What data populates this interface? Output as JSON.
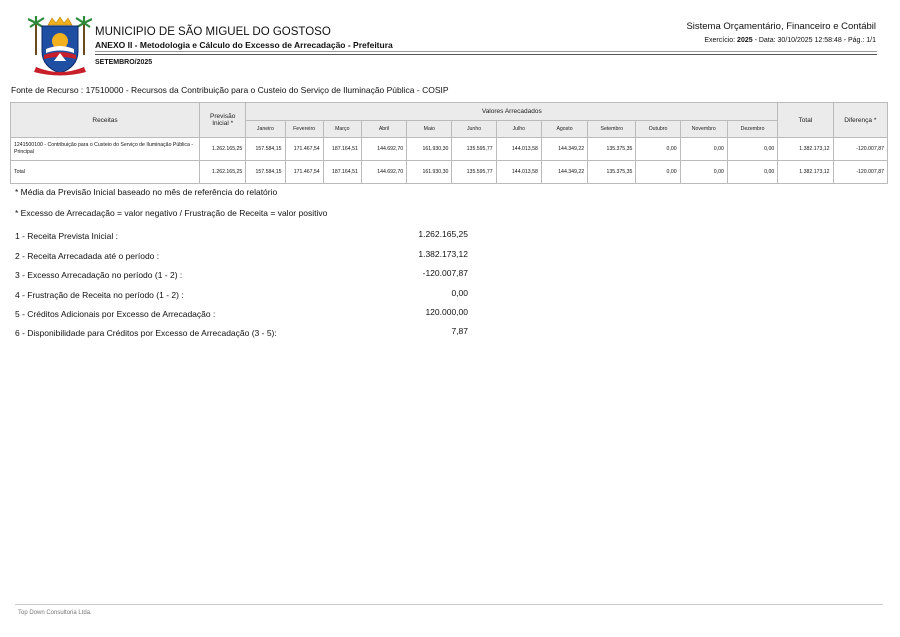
{
  "header": {
    "municipality": "MUNICIPIO DE SÃO MIGUEL DO GOSTOSO",
    "annex_title": "ANEXO II - Metodologia e Cálculo do Excesso de Arrecadação - Prefeitura",
    "month": "SETEMBRO/2025",
    "system_name": "Sistema Orçamentário, Financeiro e Contábil",
    "exercise_prefix": "Exercício:",
    "exercise_year": "2025",
    "exercise_suffix": "- Data: 30/10/2025 12:58:48 - Pág.: 1/1"
  },
  "fonte": "Fonte de Recurso : 17510000 - Recursos da Contribuição para o Custeio do Serviço de Iluminação Pública - COSIP",
  "table": {
    "col_receitas": "Receitas",
    "col_previsao": "Previsão Inicial *",
    "col_valores": "Valores Arrecadados",
    "col_total": "Total",
    "col_diferenca": "Diferença *",
    "months": [
      "Janeiro",
      "Fevereiro",
      "Março",
      "Abril",
      "Maio",
      "Junho",
      "Julho",
      "Agosto",
      "Setembro",
      "Outubro",
      "Novembro",
      "Dezembro"
    ],
    "rows": [
      {
        "label": "1241500100 - Contribuição para o Custeio do Serviço de Iluminação Pública - Principal",
        "previsao": "1.262.165,25",
        "months": [
          "157.584,15",
          "171.467,54",
          "187.164,51",
          "144.692,70",
          "161.930,30",
          "135.595,77",
          "144.013,58",
          "144.349,22",
          "135.375,35",
          "0,00",
          "0,00",
          "0,00"
        ],
        "total": "1.382.173,12",
        "diferenca": "-120.007,87"
      },
      {
        "label": "Total",
        "previsao": "1.262.165,25",
        "months": [
          "157.584,15",
          "171.467,54",
          "187.164,51",
          "144.692,70",
          "161.930,30",
          "135.595,77",
          "144.013,58",
          "144.349,22",
          "135.375,35",
          "0,00",
          "0,00",
          "0,00"
        ],
        "total": "1.382.173,12",
        "diferenca": "-120.007,87"
      }
    ]
  },
  "notes": [
    "* Média da Previsão Inicial baseado no mês de referência do relatório",
    "* Excesso de Arrecadação = valor negativo / Frustração de Receita = valor positivo"
  ],
  "summary": [
    {
      "label": "1 - Receita Prevista Inicial :",
      "value": "1.262.165,25"
    },
    {
      "label": "2 - Receita Arrecadada até o período :",
      "value": "1.382.173,12"
    },
    {
      "label": "3 - Excesso Arrecadação no período (1 - 2) :",
      "value": "-120.007,87"
    },
    {
      "label": "4 - Frustração de Receita no período (1 - 2) :",
      "value": "0,00"
    },
    {
      "label": "5 - Créditos Adicionais por Excesso de Arrecadação :",
      "value": "120.000,00"
    },
    {
      "label": "6 - Disponibilidade para Créditos por Excesso de Arrecadação (3 - 5):",
      "value": "7,87"
    }
  ],
  "footer": "Top Down Consultoria Ltda.",
  "colors": {
    "header_fill": "#ebebeb",
    "shield_blue": "#1f4fa3",
    "shield_red": "#c8202a",
    "sun": "#f2b01e"
  }
}
